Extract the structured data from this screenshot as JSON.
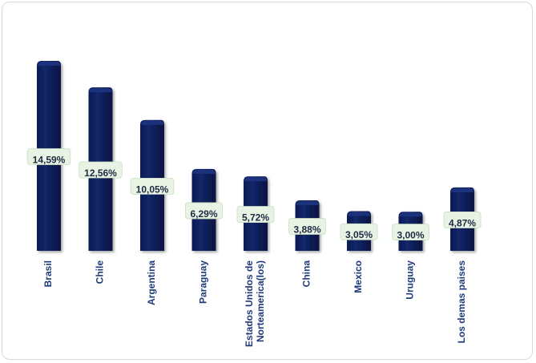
{
  "chart_data": {
    "type": "bar",
    "title": "",
    "xlabel": "",
    "ylabel": "",
    "categories": [
      "Brasil",
      "Chile",
      "Argentina",
      "Paraguay",
      [
        "Estados Unidos de",
        "Norteamerica(los)"
      ],
      "China",
      "Mexico",
      "Uruguay",
      "Los demas paises"
    ],
    "values": [
      14.59,
      12.56,
      10.05,
      6.29,
      5.72,
      3.88,
      3.05,
      3.0,
      4.87
    ],
    "value_labels": [
      "14,59%",
      "12,56%",
      "10,05%",
      "6,29%",
      "5,72%",
      "3,88%",
      "3,05%",
      "3,00%",
      "4,87%"
    ],
    "ylim": [
      0,
      15
    ],
    "grid": false,
    "legend": "none",
    "colors": {
      "bar": "#0d1f5c",
      "bar_top": "#1d3380",
      "bar_side": "#081440",
      "label_bg": "#e8f3e4",
      "category_text": "#1f3a7a"
    }
  }
}
